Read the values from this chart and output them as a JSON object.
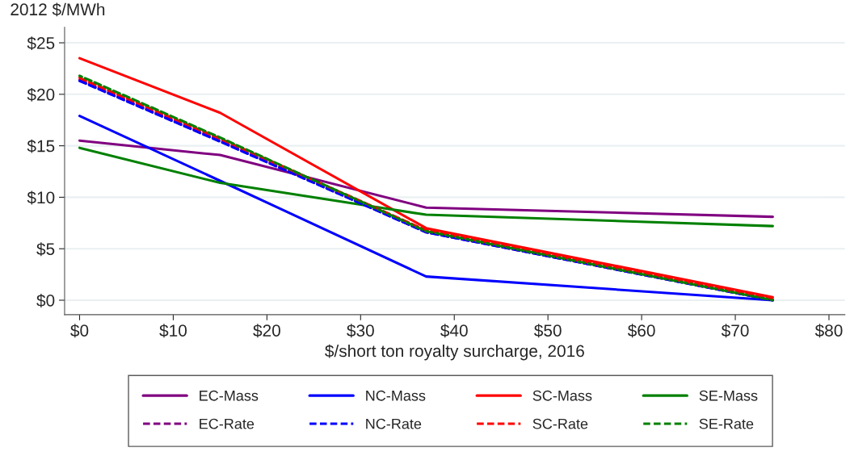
{
  "chart_data": {
    "type": "line",
    "ylabel": "2012 $/MWh",
    "xlabel": "$/short ton royalty surcharge, 2016",
    "x": [
      0,
      15,
      37,
      74
    ],
    "series": [
      {
        "name": "EC-Mass",
        "color": "#800080",
        "line_style": "solid",
        "values": [
          15.5,
          14.1,
          9.0,
          8.1
        ]
      },
      {
        "name": "NC-Mass",
        "color": "#0000ff",
        "line_style": "solid",
        "values": [
          17.9,
          11.6,
          2.3,
          0.0
        ]
      },
      {
        "name": "SC-Mass",
        "color": "#ff0000",
        "line_style": "solid",
        "values": [
          23.5,
          18.2,
          7.0,
          0.3
        ]
      },
      {
        "name": "SE-Mass",
        "color": "#008000",
        "line_style": "solid",
        "values": [
          14.8,
          11.4,
          8.3,
          7.2
        ]
      },
      {
        "name": "EC-Rate",
        "color": "#800080",
        "line_style": "dashed",
        "values": [
          21.4,
          15.5,
          6.6,
          0.0
        ]
      },
      {
        "name": "NC-Rate",
        "color": "#0000ff",
        "line_style": "dashed",
        "values": [
          21.3,
          15.4,
          6.6,
          0.0
        ]
      },
      {
        "name": "SC-Rate",
        "color": "#ff0000",
        "line_style": "dashed",
        "values": [
          21.6,
          15.7,
          6.8,
          0.1
        ]
      },
      {
        "name": "SE-Rate",
        "color": "#008000",
        "line_style": "dashed",
        "values": [
          21.8,
          15.8,
          6.7,
          0.0
        ]
      }
    ],
    "xlim": [
      -1.6,
      81.7
    ],
    "ylim": [
      -1.4,
      26.5
    ],
    "xticks": [
      {
        "value": 0,
        "label": "$0"
      },
      {
        "value": 10,
        "label": "$10"
      },
      {
        "value": 20,
        "label": "$20"
      },
      {
        "value": 30,
        "label": "$30"
      },
      {
        "value": 40,
        "label": "$40"
      },
      {
        "value": 50,
        "label": "$50"
      },
      {
        "value": 60,
        "label": "$60"
      },
      {
        "value": 70,
        "label": "$70"
      },
      {
        "value": 80,
        "label": "$80"
      }
    ],
    "yticks": [
      {
        "value": 0,
        "label": "$0"
      },
      {
        "value": 5,
        "label": "$5"
      },
      {
        "value": 10,
        "label": "$10"
      },
      {
        "value": 15,
        "label": "$15"
      },
      {
        "value": 20,
        "label": "$20"
      },
      {
        "value": 25,
        "label": "$25"
      }
    ],
    "grid": "y",
    "legend": "bottom",
    "marker": "none"
  }
}
